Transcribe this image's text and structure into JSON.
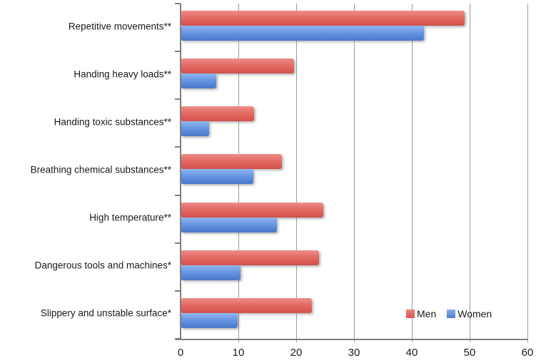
{
  "chart_data": {
    "type": "bar",
    "orientation": "horizontal",
    "title": "",
    "xlabel": "",
    "ylabel": "",
    "categories": [
      "Repetitive movements**",
      "Handing heavy loads**",
      "Handing toxic substances**",
      "Breathing chemical substances**",
      "High temperature**",
      "Dangerous tools and machines*",
      "Slippery and unstable surface*"
    ],
    "series": [
      {
        "name": "Men",
        "color": "#E0655F",
        "values": [
          49.0,
          19.5,
          12.6,
          17.4,
          24.6,
          23.8,
          22.6
        ]
      },
      {
        "name": "Women",
        "color": "#5C8BD9",
        "values": [
          42.0,
          6.0,
          4.8,
          12.5,
          16.6,
          10.2,
          9.8
        ]
      }
    ],
    "xlim": [
      0,
      60
    ],
    "xticks": [
      0,
      10,
      20,
      30,
      40,
      50,
      60
    ],
    "grid": true,
    "legend_position": "inside-bottom-right"
  },
  "colors": {
    "gridline": "#9C9C9C",
    "axis": "#7F7F7F",
    "text": "#1A1A1A"
  }
}
